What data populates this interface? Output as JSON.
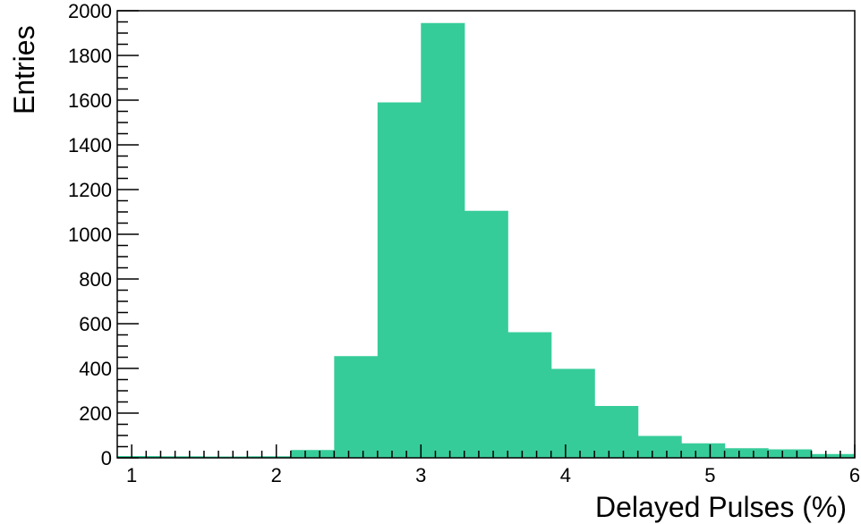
{
  "chart_data": {
    "type": "bar",
    "title": "",
    "xlabel": "Delayed Pulses (%)",
    "ylabel": "Entries",
    "xlim": [
      0.9,
      6.0
    ],
    "ylim": [
      0,
      2000
    ],
    "grid": false,
    "x_ticks": [
      "1",
      "2",
      "3",
      "4",
      "5",
      "6"
    ],
    "y_ticks": [
      "0",
      "200",
      "400",
      "600",
      "800",
      "1000",
      "1200",
      "1400",
      "1600",
      "1800",
      "2000"
    ],
    "bin_edges": [
      0.9,
      1.2,
      1.5,
      1.8,
      2.1,
      2.4,
      2.7,
      3.0,
      3.3,
      3.6,
      3.9,
      4.2,
      4.5,
      4.8,
      5.1,
      5.4,
      5.7,
      6.0
    ],
    "values": [
      8,
      7,
      6,
      7,
      35,
      455,
      1590,
      1945,
      1105,
      562,
      398,
      232,
      98,
      65,
      43,
      38,
      17
    ],
    "fill_color": "#36cc99"
  }
}
